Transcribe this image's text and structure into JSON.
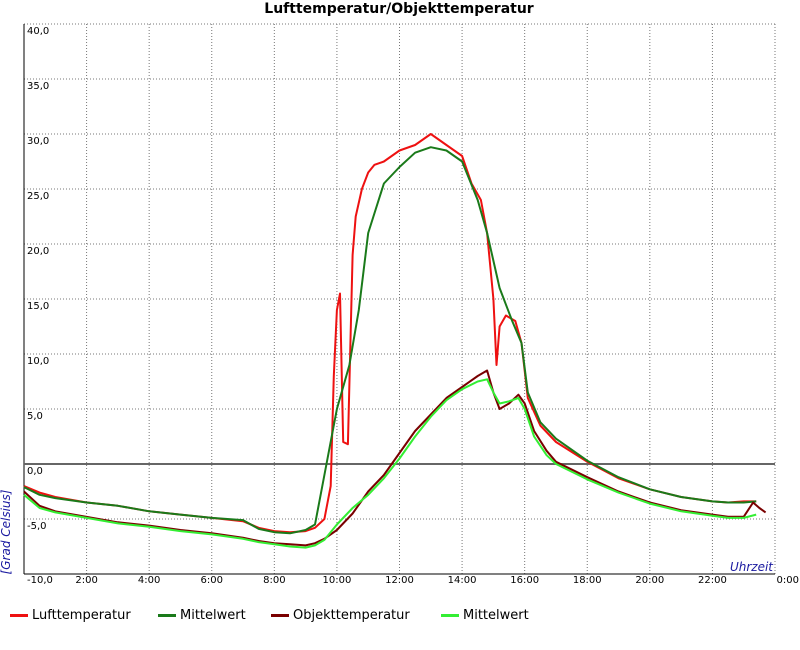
{
  "chart_data": {
    "type": "line",
    "title": "Lufttemperatur/Objekttemperatur",
    "ylabel": "[Grad Celsius]",
    "xlabel": "Uhrzeit",
    "ylim": [
      -10,
      40
    ],
    "xlim": [
      0,
      24
    ],
    "grid": true,
    "legend_position": "bottom",
    "y_tick_labels": [
      "-10,0",
      "-5,0",
      "0,0",
      "5,0",
      "10,0",
      "15,0",
      "20,0",
      "25,0",
      "30,0",
      "35,0",
      "40,0"
    ],
    "y_tick_values": [
      -10,
      -5,
      0,
      5,
      10,
      15,
      20,
      25,
      30,
      35,
      40
    ],
    "x_tick_labels": [
      "2:00",
      "4:00",
      "6:00",
      "8:00",
      "10:00",
      "12:00",
      "14:00",
      "16:00",
      "18:00",
      "20:00",
      "22:00",
      "0:00"
    ],
    "x_tick_values": [
      2,
      4,
      6,
      8,
      10,
      12,
      14,
      16,
      18,
      20,
      22,
      24
    ],
    "series": [
      {
        "name": "Lufttemperatur",
        "color": "#ee1111",
        "x": [
          0,
          0.5,
          1,
          2,
          3,
          4,
          5,
          6,
          7,
          7.5,
          8,
          8.5,
          9,
          9.3,
          9.6,
          9.8,
          9.9,
          10.0,
          10.1,
          10.2,
          10.35,
          10.5,
          10.6,
          10.8,
          11.0,
          11.2,
          11.5,
          12.0,
          12.5,
          13.0,
          13.5,
          14.0,
          14.3,
          14.6,
          14.8,
          15.0,
          15.1,
          15.2,
          15.4,
          15.7,
          15.9,
          16.1,
          16.5,
          17.0,
          18.0,
          19.0,
          20.0,
          21.0,
          22.0,
          22.5,
          23.0,
          23.4
        ],
        "y": [
          -2.0,
          -2.6,
          -3.0,
          -3.5,
          -3.8,
          -4.3,
          -4.6,
          -4.9,
          -5.2,
          -5.8,
          -6.1,
          -6.2,
          -6.1,
          -5.8,
          -5.0,
          -2.0,
          8.0,
          14.0,
          15.5,
          2.0,
          1.8,
          19.0,
          22.5,
          25.0,
          26.5,
          27.2,
          27.5,
          28.5,
          29.0,
          30.0,
          29.0,
          28.0,
          25.5,
          24.0,
          21.0,
          15.0,
          9.0,
          12.5,
          13.5,
          13.0,
          11.0,
          6.0,
          3.5,
          2.0,
          0.2,
          -1.3,
          -2.3,
          -3.0,
          -3.4,
          -3.5,
          -3.4,
          -3.4
        ]
      },
      {
        "name": "Mittelwert",
        "color": "#1a7a1a",
        "x": [
          0,
          0.5,
          1,
          2,
          3,
          4,
          5,
          6,
          7,
          7.5,
          8,
          8.5,
          9,
          9.3,
          9.6,
          10.0,
          10.4,
          10.7,
          11.0,
          11.5,
          12.0,
          12.5,
          13.0,
          13.5,
          14.0,
          14.5,
          14.8,
          15.2,
          15.6,
          15.9,
          16.1,
          16.5,
          17.0,
          18.0,
          19.0,
          20.0,
          21.0,
          22.0,
          22.5,
          23.0,
          23.4
        ],
        "y": [
          -2.1,
          -2.8,
          -3.1,
          -3.5,
          -3.8,
          -4.3,
          -4.6,
          -4.9,
          -5.1,
          -5.9,
          -6.2,
          -6.3,
          -6.0,
          -5.5,
          -1.0,
          5.0,
          9.0,
          14.0,
          21.0,
          25.5,
          27.0,
          28.3,
          28.8,
          28.5,
          27.5,
          24.0,
          21.0,
          16.0,
          13.0,
          11.0,
          6.5,
          3.8,
          2.3,
          0.3,
          -1.2,
          -2.3,
          -3.0,
          -3.4,
          -3.5,
          -3.5,
          -3.4
        ]
      },
      {
        "name": "Objekttemperatur",
        "color": "#7a0000",
        "x": [
          0,
          0.5,
          1,
          2,
          3,
          4,
          5,
          6,
          7,
          7.5,
          8,
          8.5,
          9,
          9.3,
          9.6,
          10.0,
          10.5,
          11.0,
          11.5,
          12.0,
          12.5,
          13.0,
          13.5,
          14.0,
          14.5,
          14.8,
          15.0,
          15.2,
          15.5,
          15.8,
          16.0,
          16.3,
          16.7,
          17.0,
          18.0,
          19.0,
          20.0,
          21.0,
          22.0,
          22.5,
          23.0,
          23.3,
          23.5,
          23.7
        ],
        "y": [
          -2.5,
          -3.8,
          -4.3,
          -4.8,
          -5.3,
          -5.6,
          -6.0,
          -6.3,
          -6.7,
          -7.0,
          -7.2,
          -7.3,
          -7.4,
          -7.2,
          -6.8,
          -6.0,
          -4.5,
          -2.5,
          -1.0,
          1.0,
          3.0,
          4.5,
          6.0,
          7.0,
          8.0,
          8.5,
          6.5,
          5.0,
          5.5,
          6.3,
          5.5,
          3.0,
          1.2,
          0.2,
          -1.2,
          -2.5,
          -3.5,
          -4.2,
          -4.6,
          -4.8,
          -4.8,
          -3.5,
          -4.0,
          -4.4
        ]
      },
      {
        "name": "Mittelwert",
        "color": "#33ee33",
        "x": [
          0,
          0.5,
          1,
          2,
          3,
          4,
          5,
          6,
          7,
          7.5,
          8,
          8.5,
          9,
          9.3,
          9.6,
          10.0,
          10.5,
          11.0,
          11.5,
          12.0,
          12.5,
          13.0,
          13.5,
          14.0,
          14.5,
          14.8,
          15.0,
          15.2,
          15.5,
          15.8,
          16.0,
          16.3,
          16.7,
          17.0,
          18.0,
          19.0,
          20.0,
          21.0,
          22.0,
          22.5,
          23.0,
          23.4
        ],
        "y": [
          -2.8,
          -4.0,
          -4.4,
          -4.9,
          -5.4,
          -5.7,
          -6.1,
          -6.4,
          -6.8,
          -7.1,
          -7.3,
          -7.5,
          -7.6,
          -7.4,
          -6.9,
          -5.5,
          -4.0,
          -2.8,
          -1.3,
          0.5,
          2.5,
          4.3,
          5.8,
          6.8,
          7.5,
          7.7,
          6.5,
          5.5,
          5.7,
          6.0,
          5.0,
          2.5,
          0.8,
          0.0,
          -1.4,
          -2.6,
          -3.6,
          -4.3,
          -4.7,
          -4.9,
          -4.9,
          -4.6
        ]
      }
    ]
  }
}
